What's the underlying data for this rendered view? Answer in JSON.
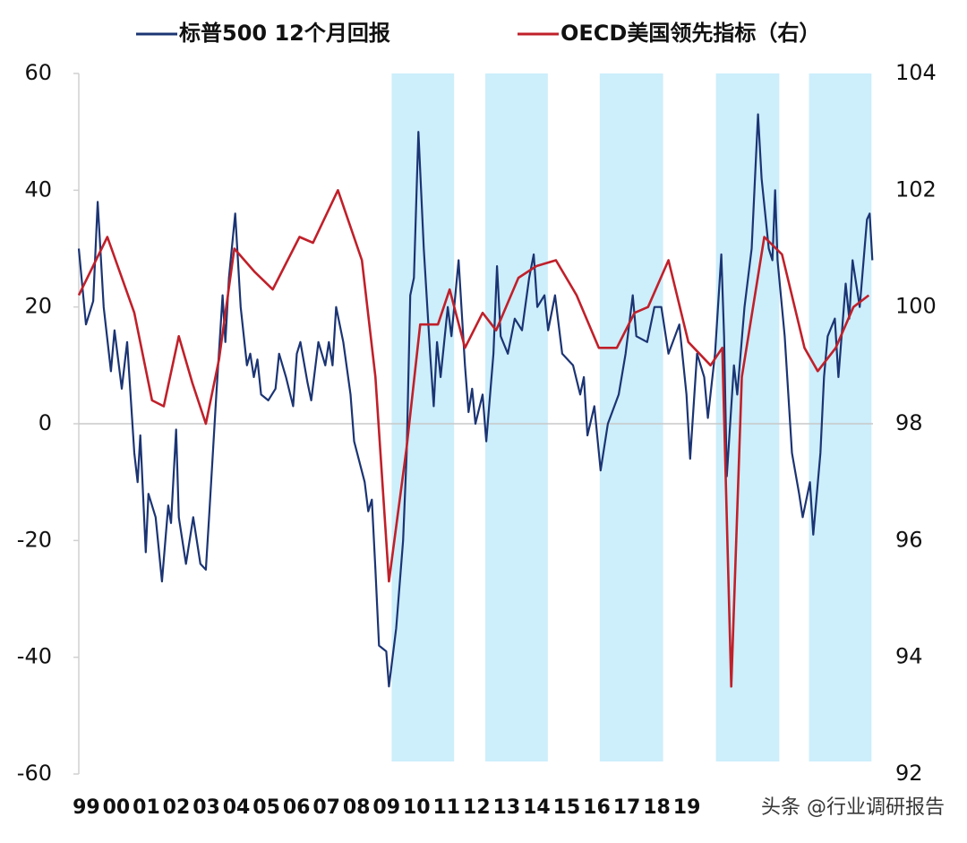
{
  "chart_data": {
    "type": "line",
    "xlim": [
      1999.25,
      2025.7
    ],
    "xticks": [
      {
        "value": 1999.5,
        "label": "99"
      },
      {
        "value": 2000.5,
        "label": "00"
      },
      {
        "value": 2001.5,
        "label": "01"
      },
      {
        "value": 2002.5,
        "label": "02"
      },
      {
        "value": 2003.5,
        "label": "03"
      },
      {
        "value": 2004.5,
        "label": "04"
      },
      {
        "value": 2005.5,
        "label": "05"
      },
      {
        "value": 2006.5,
        "label": "06"
      },
      {
        "value": 2007.5,
        "label": "07"
      },
      {
        "value": 2008.5,
        "label": "08"
      },
      {
        "value": 2009.5,
        "label": "09"
      },
      {
        "value": 2010.5,
        "label": "10"
      },
      {
        "value": 2011.5,
        "label": "11"
      },
      {
        "value": 2012.5,
        "label": "12"
      },
      {
        "value": 2013.5,
        "label": "13"
      },
      {
        "value": 2014.5,
        "label": "14"
      },
      {
        "value": 2015.5,
        "label": "15"
      },
      {
        "value": 2016.5,
        "label": "16"
      },
      {
        "value": 2017.5,
        "label": "17"
      },
      {
        "value": 2018.5,
        "label": "18"
      },
      {
        "value": 2019.5,
        "label": "19"
      }
    ],
    "ylim": [
      -60,
      60
    ],
    "yticks": [
      -60,
      -40,
      -20,
      0,
      20,
      40,
      60
    ],
    "y2lim": [
      92,
      104
    ],
    "y2ticks": [
      92,
      94,
      96,
      98,
      100,
      102,
      104
    ],
    "reference_line": 0,
    "shade_color": "#cdeefb",
    "shaded_ranges": [
      [
        2009.67,
        2011.75
      ],
      [
        2012.79,
        2014.87
      ],
      [
        2016.6,
        2018.71
      ],
      [
        2020.47,
        2022.58
      ],
      [
        2023.57,
        2025.65
      ]
    ],
    "watermark": "头条 @行业调研报告",
    "series": [
      {
        "name": "标普500 12个月回报",
        "color": "#1b3473",
        "x": [
          1999.25,
          1999.49,
          1999.73,
          1999.88,
          2000.08,
          2000.32,
          2000.44,
          2000.68,
          2000.86,
          2001.1,
          2001.21,
          2001.3,
          2001.48,
          2001.57,
          2001.81,
          2002.02,
          2002.23,
          2002.32,
          2002.49,
          2002.58,
          2002.82,
          2003.06,
          2003.3,
          2003.48,
          2003.6,
          2003.83,
          2004.04,
          2004.13,
          2004.25,
          2004.46,
          2004.64,
          2004.85,
          2004.96,
          2005.08,
          2005.2,
          2005.32,
          2005.56,
          2005.8,
          2005.92,
          2006.15,
          2006.39,
          2006.51,
          2006.63,
          2006.87,
          2006.99,
          2007.23,
          2007.46,
          2007.58,
          2007.7,
          2007.82,
          2008.06,
          2008.3,
          2008.42,
          2008.77,
          2008.89,
          2009.01,
          2009.13,
          2009.25,
          2009.49,
          2009.58,
          2009.82,
          2010.05,
          2010.17,
          2010.29,
          2010.41,
          2010.56,
          2010.74,
          2010.95,
          2011.07,
          2011.18,
          2011.3,
          2011.54,
          2011.66,
          2011.9,
          2012.11,
          2012.23,
          2012.35,
          2012.46,
          2012.7,
          2012.82,
          2013.06,
          2013.18,
          2013.3,
          2013.54,
          2013.77,
          2014.01,
          2014.25,
          2014.4,
          2014.52,
          2014.76,
          2014.88,
          2015.11,
          2015.35,
          2015.71,
          2015.95,
          2016.07,
          2016.19,
          2016.42,
          2016.63,
          2016.87,
          2017.23,
          2017.46,
          2017.7,
          2017.82,
          2018.18,
          2018.42,
          2018.65,
          2018.89,
          2019.25,
          2019.49,
          2019.61,
          2019.84,
          2020.08,
          2020.2,
          2020.44,
          2020.65,
          2020.74,
          2020.83,
          2021.07,
          2021.18,
          2021.42,
          2021.66,
          2021.87,
          2021.99,
          2022.23,
          2022.35,
          2022.44,
          2022.52,
          2022.76,
          2023.0,
          2023.24,
          2023.36,
          2023.6,
          2023.71,
          2023.95,
          2024.07,
          2024.19,
          2024.43,
          2024.55,
          2024.79,
          2024.91,
          2025.02,
          2025.26,
          2025.5,
          2025.59,
          2025.68
        ],
        "values": [
          30,
          17,
          21,
          38,
          20,
          9,
          16,
          6,
          14,
          -5,
          -10,
          -2,
          -22,
          -12,
          -16,
          -27,
          -14,
          -17,
          -1,
          -16,
          -24,
          -16,
          -24,
          -25,
          -15,
          5,
          22,
          14,
          25,
          36,
          20,
          10,
          12,
          8,
          11,
          5,
          4,
          6,
          12,
          8,
          3,
          12,
          14,
          7,
          4,
          14,
          10,
          14,
          10,
          20,
          14,
          5,
          -3,
          -10,
          -15,
          -13,
          -25,
          -38,
          -39,
          -45,
          -35,
          -20,
          -5,
          22,
          25,
          50,
          30,
          12,
          3,
          14,
          8,
          20,
          15,
          28,
          10,
          2,
          6,
          0,
          5,
          -3,
          12,
          27,
          15,
          12,
          18,
          16,
          25,
          29,
          20,
          22,
          16,
          22,
          12,
          10,
          5,
          8,
          -2,
          3,
          -8,
          0,
          5,
          12,
          22,
          15,
          14,
          20,
          20,
          12,
          17,
          5,
          -6,
          12,
          8,
          1,
          12,
          29,
          15,
          -9,
          10,
          5,
          20,
          30,
          53,
          42,
          30,
          28,
          40,
          28,
          15,
          -5,
          -12,
          -16,
          -10,
          -19,
          -5,
          8,
          15,
          18,
          8,
          24,
          18,
          28,
          20,
          35,
          36,
          28
        ]
      },
      {
        "name": "OECD美国领先指标（右）",
        "color": "#c0202a",
        "axis": "y2",
        "x": [
          1999.25,
          2000.2,
          2001.1,
          2001.69,
          2002.08,
          2002.58,
          2003.03,
          2003.48,
          2003.92,
          2004.43,
          2005.11,
          2005.71,
          2006.6,
          2007.05,
          2007.88,
          2008.68,
          2009.13,
          2009.58,
          2010.17,
          2010.62,
          2011.21,
          2011.6,
          2012.11,
          2012.7,
          2013.15,
          2013.89,
          2014.49,
          2015.14,
          2015.83,
          2016.57,
          2017.17,
          2017.76,
          2018.21,
          2018.89,
          2019.55,
          2020.29,
          2020.68,
          2020.98,
          2021.33,
          2022.08,
          2022.67,
          2023.42,
          2023.86,
          2024.46,
          2025.05,
          2025.56
        ],
        "values": [
          100.2,
          101.2,
          99.9,
          98.4,
          98.3,
          99.5,
          98.7,
          98.0,
          99.1,
          101.0,
          100.6,
          100.3,
          101.2,
          101.1,
          102.0,
          100.8,
          98.8,
          95.3,
          97.6,
          99.7,
          99.7,
          100.3,
          99.3,
          99.9,
          99.6,
          100.5,
          100.7,
          100.8,
          100.2,
          99.3,
          99.3,
          99.9,
          100.0,
          100.8,
          99.4,
          99.0,
          99.3,
          93.5,
          98.8,
          101.2,
          100.9,
          99.3,
          98.9,
          99.3,
          100.0,
          100.2
        ]
      }
    ]
  }
}
